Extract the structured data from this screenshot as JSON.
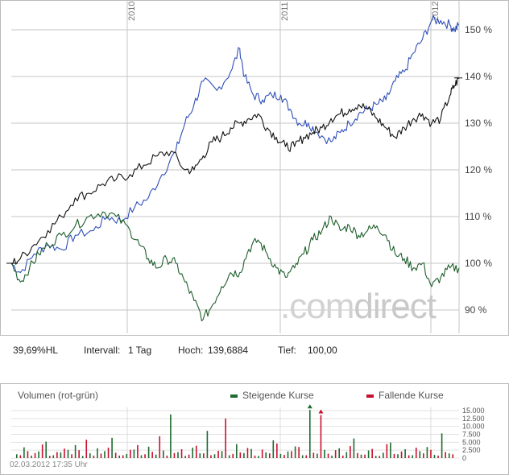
{
  "chart_data": [
    {
      "type": "line",
      "x_ticks": [
        "2010",
        "2011",
        "2012"
      ],
      "y_ticks": [
        "150 %",
        "140 %",
        "130 %",
        "120 %",
        "110 %",
        "100 %",
        "90 %"
      ],
      "ylim": [
        86,
        156
      ],
      "grid": true,
      "colors": {
        "blue": "#2f4fb8",
        "black": "#111111",
        "green": "#1d5e2a"
      },
      "series": [
        {
          "color": "blue",
          "points": [
            [
              0,
              100
            ],
            [
              2,
              98
            ],
            [
              5,
              102
            ],
            [
              8,
              104
            ],
            [
              11,
              103
            ],
            [
              14,
              106
            ],
            [
              18,
              107
            ],
            [
              21,
              110
            ],
            [
              24,
              109
            ],
            [
              27,
              112
            ],
            [
              30,
              114
            ],
            [
              33,
              119
            ],
            [
              36,
              124
            ],
            [
              38,
              130
            ],
            [
              40,
              134
            ],
            [
              42,
              139
            ],
            [
              45,
              137
            ],
            [
              48,
              141
            ],
            [
              50,
              146
            ],
            [
              51,
              140
            ],
            [
              53,
              136
            ],
            [
              55,
              135
            ],
            [
              57,
              136
            ],
            [
              59,
              136
            ],
            [
              61,
              133
            ],
            [
              63,
              130
            ],
            [
              65,
              130
            ],
            [
              67,
              128
            ],
            [
              70,
              126
            ],
            [
              72,
              128
            ],
            [
              74,
              130
            ],
            [
              76,
              132
            ],
            [
              78,
              133
            ],
            [
              80,
              134
            ],
            [
              82,
              135
            ],
            [
              84,
              139
            ],
            [
              86,
              141
            ],
            [
              88,
              145
            ],
            [
              90,
              148
            ],
            [
              92,
              152
            ],
            [
              94,
              152
            ],
            [
              96,
              151
            ],
            [
              97,
              150
            ],
            [
              98,
              151
            ]
          ]
        },
        {
          "color": "black",
          "points": [
            [
              0,
              100
            ],
            [
              2,
              101
            ],
            [
              5,
              104
            ],
            [
              8,
              107
            ],
            [
              11,
              110
            ],
            [
              14,
              114
            ],
            [
              17,
              115
            ],
            [
              20,
              117
            ],
            [
              23,
              118
            ],
            [
              26,
              119
            ],
            [
              29,
              121
            ],
            [
              32,
              123
            ],
            [
              35,
              124
            ],
            [
              38,
              120
            ],
            [
              40,
              120
            ],
            [
              42,
              123
            ],
            [
              44,
              126
            ],
            [
              46,
              127
            ],
            [
              48,
              129
            ],
            [
              50,
              130
            ],
            [
              52,
              131
            ],
            [
              54,
              132
            ],
            [
              56,
              129
            ],
            [
              58,
              127
            ],
            [
              60,
              125
            ],
            [
              62,
              125
            ],
            [
              64,
              127
            ],
            [
              66,
              128
            ],
            [
              68,
              129
            ],
            [
              70,
              131
            ],
            [
              72,
              132
            ],
            [
              74,
              133
            ],
            [
              76,
              134
            ],
            [
              78,
              133
            ],
            [
              80,
              131
            ],
            [
              82,
              129
            ],
            [
              84,
              127
            ],
            [
              86,
              129
            ],
            [
              88,
              131
            ],
            [
              90,
              132
            ],
            [
              92,
              130
            ],
            [
              94,
              131
            ],
            [
              96,
              136
            ],
            [
              97,
              138
            ],
            [
              98,
              139.69
            ]
          ]
        },
        {
          "color": "green",
          "points": [
            [
              0,
              100
            ],
            [
              2,
              96
            ],
            [
              4,
              99
            ],
            [
              6,
              102
            ],
            [
              8,
              104
            ],
            [
              11,
              106
            ],
            [
              14,
              108
            ],
            [
              17,
              110
            ],
            [
              20,
              111
            ],
            [
              23,
              110
            ],
            [
              26,
              107
            ],
            [
              28,
              104
            ],
            [
              30,
              101
            ],
            [
              32,
              99
            ],
            [
              34,
              101
            ],
            [
              36,
              100
            ],
            [
              38,
              96
            ],
            [
              40,
              92
            ],
            [
              42,
              88
            ],
            [
              44,
              91
            ],
            [
              46,
              95
            ],
            [
              48,
              98
            ],
            [
              50,
              98
            ],
            [
              52,
              103
            ],
            [
              54,
              105
            ],
            [
              56,
              102
            ],
            [
              58,
              99
            ],
            [
              60,
              97
            ],
            [
              62,
              99
            ],
            [
              64,
              102
            ],
            [
              66,
              105
            ],
            [
              68,
              107
            ],
            [
              70,
              110
            ],
            [
              72,
              107
            ],
            [
              74,
              108
            ],
            [
              76,
              106
            ],
            [
              78,
              107
            ],
            [
              80,
              108
            ],
            [
              82,
              106
            ],
            [
              84,
              102
            ],
            [
              86,
              101
            ],
            [
              88,
              99
            ],
            [
              90,
              100
            ],
            [
              92,
              95
            ],
            [
              94,
              97
            ],
            [
              96,
              99
            ],
            [
              98,
              99
            ]
          ]
        }
      ]
    },
    {
      "type": "bar",
      "title": "Volumen (rot-grün)",
      "y_ticks": [
        "15.000",
        "12.500",
        "10.000",
        "7.500",
        "5.000",
        "2.500",
        "0"
      ],
      "ylim": [
        0,
        15000
      ],
      "legend": [
        "Steigende Kurse",
        "Fallende Kurse"
      ],
      "colors": {
        "rising": "#1d6b2e",
        "falling": "#c8102e"
      },
      "rising": [
        1200,
        3400,
        800,
        2100,
        5200,
        900,
        1800,
        2600,
        4100,
        700,
        1500,
        3100,
        2200,
        6400,
        800,
        1300,
        2700,
        900,
        3600,
        1100,
        2400,
        13800,
        1900,
        700,
        3300,
        1500,
        8600,
        1200,
        2200,
        900,
        4400,
        1600,
        2900,
        700,
        1800,
        5600,
        1300,
        2100,
        3700,
        900,
        15200,
        1400,
        2600,
        800,
        3100,
        1900,
        6200,
        1100,
        2400,
        700,
        1700,
        4900,
        1200,
        2800,
        900,
        2200,
        3500,
        1000,
        7800,
        1500
      ],
      "falling": [
        900,
        2200,
        1600,
        4300,
        700,
        1900,
        3000,
        1200,
        2500,
        5800,
        800,
        1400,
        3300,
        1700,
        900,
        2600,
        4100,
        1200,
        2000,
        6900,
        800,
        1600,
        2800,
        1100,
        3900,
        1500,
        900,
        2300,
        12500,
        1300,
        1800,
        3200,
        800,
        2700,
        1500,
        4600,
        1000,
        2200,
        3500,
        900,
        1700,
        13600,
        1400,
        2500,
        800,
        3800,
        1600,
        1100,
        2900,
        700,
        4400,
        1300,
        2100,
        900,
        3300,
        1500,
        2600,
        800,
        1900,
        1200
      ]
    },
    {
      "type": "table",
      "stats": {
        "hl": "39,69%HL",
        "intervall_label": "Intervall:",
        "intervall": "1 Tag",
        "hoch_label": "Hoch:",
        "hoch": "139,6884",
        "tief_label": "Tief:",
        "tief": "100,00"
      }
    }
  ],
  "watermark_pre": ".com",
  "watermark_post": "direct",
  "timestamp": "02.03.2012 17:35 Uhr"
}
